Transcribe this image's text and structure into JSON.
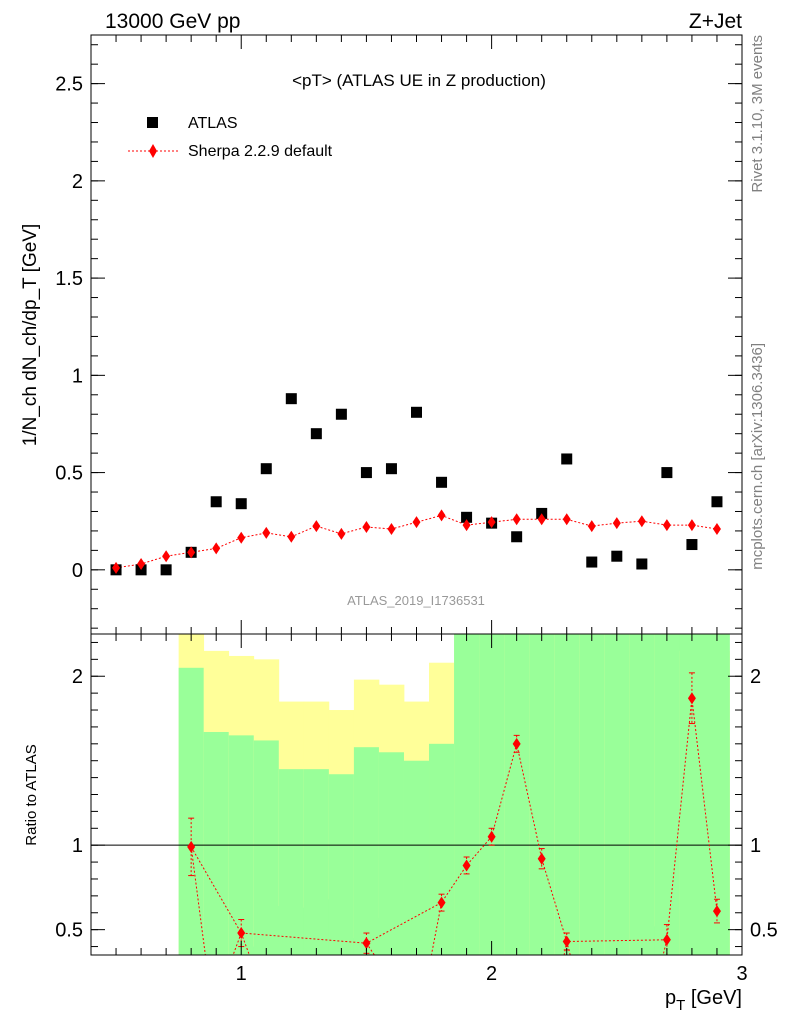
{
  "header": {
    "energy_label": "13000 GeV pp",
    "process_label": "Z+Jet"
  },
  "side_text": {
    "rivet": "Rivet 3.1.10,  3M events",
    "mcplots": "mcplots.cern.ch [arXiv:1306.3436]"
  },
  "colors": {
    "data": "#000000",
    "mc": "#ff0000",
    "band_inner": "#99ff99",
    "band_outer": "#ffff99"
  },
  "chart_data": [
    {
      "type": "scatter",
      "title": "<pT> (ATLAS UE in Z production)",
      "analysis_label": "ATLAS_2019_I1736531",
      "xlabel": "p_T [GeV]",
      "ylabel": "1/N_ch dN_ch/dp_T [GeV]",
      "xlim": [
        0.4,
        3.0
      ],
      "ylim": [
        -0.33,
        2.75
      ],
      "y_ticks": [
        0,
        0.5,
        1,
        1.5,
        2,
        2.5
      ],
      "y_tick_labels": [
        "0",
        "0.5",
        "1",
        "1.5",
        "2",
        "2.5"
      ],
      "legend_position": "top-left",
      "series": [
        {
          "name": "ATLAS",
          "marker": "square",
          "x": [
            0.5,
            0.6,
            0.7,
            0.8,
            0.9,
            1.0,
            1.1,
            1.2,
            1.3,
            1.4,
            1.5,
            1.6,
            1.7,
            1.8,
            1.9,
            2.0,
            2.1,
            2.2,
            2.3,
            2.4,
            2.5,
            2.6,
            2.7,
            2.8,
            2.9
          ],
          "y": [
            0.0,
            0.0,
            0.0,
            0.09,
            0.35,
            0.34,
            0.52,
            0.88,
            0.7,
            0.8,
            0.5,
            0.52,
            0.81,
            0.45,
            0.27,
            0.24,
            0.17,
            0.29,
            0.57,
            0.04,
            0.07,
            0.03,
            0.5,
            0.13,
            0.35
          ]
        },
        {
          "name": "Sherpa 2.2.9 default",
          "marker": "diamond",
          "x": [
            0.5,
            0.6,
            0.7,
            0.8,
            0.9,
            1.0,
            1.1,
            1.2,
            1.3,
            1.4,
            1.5,
            1.6,
            1.7,
            1.8,
            1.9,
            2.0,
            2.1,
            2.2,
            2.3,
            2.4,
            2.5,
            2.6,
            2.7,
            2.8,
            2.9
          ],
          "y": [
            0.01,
            0.03,
            0.07,
            0.09,
            0.11,
            0.165,
            0.19,
            0.17,
            0.225,
            0.185,
            0.22,
            0.21,
            0.245,
            0.28,
            0.23,
            0.245,
            0.26,
            0.26,
            0.26,
            0.225,
            0.24,
            0.25,
            0.23,
            0.23,
            0.21
          ]
        }
      ]
    },
    {
      "type": "line",
      "ylabel": "Ratio to ATLAS",
      "xlabel": "p_T [GeV]",
      "xlim": [
        0.4,
        3.0
      ],
      "ylim": [
        0.35,
        2.25
      ],
      "x_ticks": [
        1,
        2,
        3
      ],
      "x_tick_labels": [
        "1",
        "2",
        "3"
      ],
      "y_ticks": [
        0.5,
        1,
        2
      ],
      "y_tick_labels": [
        "0.5",
        "1",
        "2"
      ],
      "reference_line": 1,
      "bands": {
        "bin_edges": [
          0.75,
          0.85,
          0.95,
          1.05,
          1.15,
          1.25,
          1.35,
          1.45,
          1.55,
          1.65,
          1.75,
          1.85,
          1.95,
          2.05,
          2.15,
          2.25,
          2.35,
          2.45,
          2.55,
          2.65,
          2.75,
          2.95
        ],
        "inner_low": [
          0.0,
          0.0,
          0.0,
          0.0,
          0.0,
          0.0,
          0.0,
          0.0,
          0.0,
          0.0,
          0.0,
          0.0,
          0.0,
          0.0,
          0.0,
          0.0,
          0.0,
          0.0,
          0.0,
          0.0,
          0.0
        ],
        "inner_high": [
          2.05,
          1.67,
          1.65,
          1.62,
          1.45,
          1.45,
          1.42,
          1.58,
          1.55,
          1.5,
          1.6,
          2.25,
          2.25,
          2.25,
          2.25,
          2.25,
          2.25,
          2.25,
          2.25,
          2.25,
          2.25
        ],
        "outer_low": [
          0.0,
          0.0,
          0.35,
          0.4,
          0.64,
          0.63,
          0.68,
          0.45,
          0.57,
          0.72,
          0.0,
          0.0,
          0.0,
          0.0,
          0.0,
          0.0,
          0.0,
          0.0,
          0.0,
          0.52,
          0.0
        ],
        "outer_high": [
          2.25,
          2.15,
          2.12,
          2.1,
          1.85,
          1.85,
          1.8,
          1.98,
          1.95,
          1.85,
          2.08,
          2.25,
          2.25,
          2.25,
          2.25,
          2.25,
          2.25,
          2.25,
          2.25,
          2.25,
          2.15
        ]
      },
      "series": [
        {
          "name": "Sherpa 2.2.9 default",
          "x": [
            0.8,
            1.0,
            1.5,
            1.8,
            1.9,
            2.0,
            2.1,
            2.2,
            2.3,
            2.7,
            2.8,
            2.9
          ],
          "y": [
            0.99,
            0.48,
            0.42,
            0.66,
            0.88,
            1.05,
            1.6,
            0.92,
            0.43,
            0.44,
            1.87,
            0.61
          ],
          "err": [
            0.17,
            0.08,
            0.06,
            0.05,
            0.05,
            0.05,
            0.05,
            0.06,
            0.05,
            0.09,
            0.15,
            0.07
          ]
        }
      ]
    }
  ]
}
